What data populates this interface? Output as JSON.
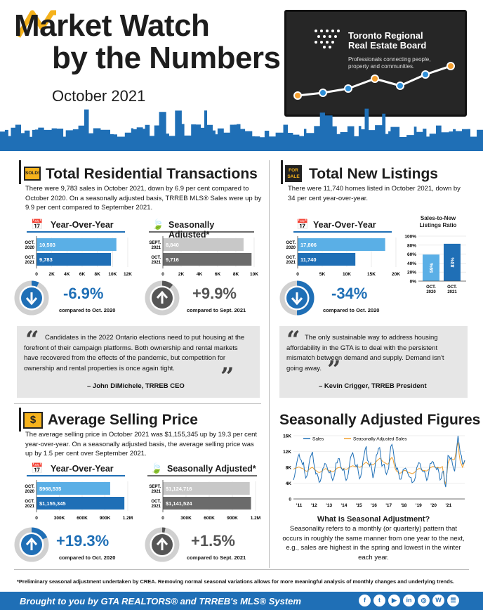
{
  "header": {
    "title_line1": "Market Watch",
    "title_line2": "by the Numbers",
    "date": "October 2021",
    "brand_line1": "Toronto Regional",
    "brand_line2": "Real Estate Board",
    "tagline_line1": "Professionals connecting people,",
    "tagline_line2": "property and communities."
  },
  "transactions": {
    "title": "Total Residential Transactions",
    "badge": "SOLD!",
    "body": "There were 9,783 sales in October 2021, down by 6.9 per cent compared to October 2020. On a seasonally adjusted basis, TRREB MLS® Sales were up by 9.9 per cent compared to September 2021.",
    "yoy_label": "Year-Over-Year",
    "sa_label": "Seasonally Adjusted*",
    "yoy_pct": "-6.9%",
    "yoy_cmp": "compared to Oct. 2020",
    "sa_pct": "+9.9%",
    "sa_cmp": "compared to Sept. 2021"
  },
  "listings": {
    "title": "Total New Listings",
    "badge_line1": "FOR",
    "badge_line2": "SALE",
    "body": "There were 11,740 homes listed in October 2021, down by 34 per cent year-over-year.",
    "yoy_label": "Year-Over-Year",
    "yoy_pct": "-34%",
    "yoy_cmp": "compared to Oct. 2020",
    "ratio_title_line1": "Sales-to-New",
    "ratio_title_line2": "Listings Ratio"
  },
  "quote1": {
    "text": "Candidates in the 2022 Ontario elections need to put housing at the forefront of their campaign platforms. Both ownership and rental markets have recovered from the effects of the pandemic, but competition for ownership and rental properties is once again tight.",
    "by": "– John DiMichele, TRREB CEO"
  },
  "quote2": {
    "text": "The only sustainable way to address housing affordability in the GTA is to deal with the persistent mismatch between demand and supply. Demand isn't going away.",
    "by": "– Kevin Crigger, TRREB President"
  },
  "price": {
    "title": "Average Selling Price",
    "badge": "$",
    "body": "The average selling price in October 2021 was $1,155,345 up by 19.3 per cent year-over-year. On a seasonally adjusted basis, the average selling price was up by 1.5 per cent over September 2021.",
    "yoy_label": "Year-Over-Year",
    "sa_label": "Seasonally Adjusted*",
    "yoy_pct": "+19.3%",
    "yoy_cmp": "compared to Oct. 2020",
    "sa_pct": "+1.5%",
    "sa_cmp": "compared to Sept. 2021"
  },
  "seasonal": {
    "title": "Seasonally Adjusted Figures",
    "q_title": "What is Seasonal Adjustment?",
    "q_body": "Seasonality refers to a monthly (or quarterly) pattern that occurs in roughly the same manner from one year to the next, e.g., sales are highest in the spring and lowest in the winter each year."
  },
  "footnote": "*Preliminary seasonal adjustment undertaken by CREA. Removing normal seasonal variations allows for more meaningful analysis of monthly changes and underlying trends.",
  "footer": "Brought to you by GTA REALTORS® and TRREB's MLS® System",
  "social": [
    "f",
    "t",
    "▶",
    "in",
    "◎",
    "W",
    "☰"
  ],
  "colors": {
    "blue": "#1f6fb6",
    "light_blue": "#5aafe6",
    "gray": "#6b6b6b",
    "light_gray": "#c8c8c8",
    "orange": "#f0a030",
    "yellow": "#f5b21c"
  },
  "chart_data": [
    {
      "type": "bar",
      "orientation": "horizontal",
      "title": "Year-Over-Year",
      "categories": [
        "OCT. 2020",
        "OCT. 2021"
      ],
      "values": [
        10503,
        9783
      ],
      "value_labels": [
        "10,503",
        "9,783"
      ],
      "xlim": [
        0,
        12000
      ],
      "ticks": [
        "0",
        "2K",
        "4K",
        "6K",
        "8K",
        "10K",
        "12K"
      ],
      "colors": [
        "#5aafe6",
        "#1f6fb6"
      ]
    },
    {
      "type": "bar",
      "orientation": "horizontal",
      "title": "Seasonally Adjusted*",
      "categories": [
        "SEPT. 2021",
        "OCT. 2021"
      ],
      "values": [
        8840,
        9716
      ],
      "value_labels": [
        "8,840",
        "9,716"
      ],
      "xlim": [
        0,
        10000
      ],
      "ticks": [
        "0",
        "2K",
        "4K",
        "6K",
        "8K",
        "10K"
      ],
      "colors": [
        "#c8c8c8",
        "#6b6b6b"
      ]
    },
    {
      "type": "bar",
      "orientation": "horizontal",
      "title": "Year-Over-Year",
      "categories": [
        "OCT. 2020",
        "OCT. 2021"
      ],
      "values": [
        17806,
        11740
      ],
      "value_labels": [
        "17,806",
        "11,740"
      ],
      "xlim": [
        0,
        20000
      ],
      "ticks": [
        "0",
        "5K",
        "10K",
        "15K",
        "20K"
      ],
      "colors": [
        "#5aafe6",
        "#1f6fb6"
      ]
    },
    {
      "type": "bar",
      "orientation": "vertical",
      "title": "Sales-to-New Listings Ratio",
      "categories": [
        "OCT. 2020",
        "OCT. 2021"
      ],
      "values": [
        59,
        83
      ],
      "value_labels": [
        "59%",
        "83%"
      ],
      "ylim": [
        0,
        100
      ],
      "ticks": [
        "0%",
        "20%",
        "40%",
        "60%",
        "80%",
        "100%"
      ],
      "colors": [
        "#5aafe6",
        "#1f6fb6"
      ]
    },
    {
      "type": "bar",
      "orientation": "horizontal",
      "title": "Year-Over-Year",
      "categories": [
        "OCT. 2020",
        "OCT. 2021"
      ],
      "values": [
        968535,
        1155345
      ],
      "value_labels": [
        "$968,535",
        "$1,155,345"
      ],
      "xlim": [
        0,
        1200000
      ],
      "ticks": [
        "0",
        "300K",
        "600K",
        "900K",
        "1.2M"
      ],
      "colors": [
        "#5aafe6",
        "#1f6fb6"
      ]
    },
    {
      "type": "bar",
      "orientation": "horizontal",
      "title": "Seasonally Adjusted*",
      "categories": [
        "SEPT. 2021",
        "OCT. 2021"
      ],
      "values": [
        1124716,
        1141524
      ],
      "value_labels": [
        "$1,124,716",
        "$1,141,524"
      ],
      "xlim": [
        0,
        1200000
      ],
      "ticks": [
        "0",
        "300K",
        "600K",
        "900K",
        "1.2M"
      ],
      "colors": [
        "#c8c8c8",
        "#6b6b6b"
      ]
    },
    {
      "type": "line",
      "title": "Seasonally Adjusted Figures",
      "x_ticks": [
        "'11",
        "'12",
        "'13",
        "'14",
        "'15",
        "'16",
        "'17",
        "'18",
        "'19",
        "'20",
        "'21"
      ],
      "y_ticks": [
        "0",
        "4K",
        "8K",
        "12K",
        "16K"
      ],
      "ylim": [
        0,
        16000
      ],
      "legend": "top",
      "series": [
        {
          "name": "Sales",
          "color": "#1f6fb6",
          "values": [
            4800,
            5800,
            7600,
            9200,
            10600,
            11300,
            10000,
            9800,
            8700,
            9200,
            6800,
            5300,
            5800,
            6800,
            9000,
            10500,
            11200,
            11900,
            9300,
            7800,
            6300,
            6500,
            5600,
            4200,
            4500,
            5600,
            7600,
            8000,
            9000,
            8800,
            8100,
            7000,
            6600,
            7000,
            5600,
            4700,
            5300,
            6600,
            9100,
            9100,
            10200,
            10200,
            8400,
            7700,
            7200,
            7600,
            5700,
            4700,
            5200,
            6400,
            8500,
            10500,
            11200,
            11700,
            10400,
            8700,
            8200,
            8700,
            6700,
            5100,
            5600,
            7100,
            9500,
            11000,
            12500,
            13300,
            9800,
            9500,
            8300,
            9100,
            7500,
            5300,
            6400,
            8400,
            11000,
            11500,
            12800,
            13000,
            10800,
            8300,
            8600,
            8800,
            7100,
            6200,
            7000,
            7700,
            11200,
            13300,
            13800,
            12600,
            10400,
            8800,
            7500,
            7800,
            6400,
            5000,
            5000,
            6000,
            7500,
            7600,
            7800,
            7400,
            6600,
            5800,
            5500,
            5400,
            4100,
            4300,
            4600,
            5600,
            7800,
            8500,
            9200,
            9000,
            7800,
            7100,
            6900,
            7000,
            6000,
            4700,
            5200,
            7100,
            8900,
            9000,
            9500,
            9300,
            8200,
            8000,
            7400,
            7900,
            6600,
            4800,
            5200,
            6800,
            7000,
            4100,
            3000,
            6200,
            11000,
            10800,
            10100,
            10500,
            8800,
            7700,
            7000,
            9800,
            13300,
            16000,
            13800,
            11600,
            11000,
            8800,
            9000,
            9800
          ]
        },
        {
          "name": "Seasonally Adjusted Sales",
          "color": "#f0a030",
          "values": [
            7500,
            7700,
            7800,
            7900,
            8000,
            8100,
            7900,
            7800,
            7700,
            7600,
            7300,
            7100,
            7000,
            7200,
            7500,
            7700,
            7900,
            8000,
            7700,
            7400,
            7200,
            7000,
            6800,
            6700,
            6800,
            7000,
            7200,
            7400,
            7600,
            7700,
            7500,
            7300,
            7100,
            7200,
            7000,
            6900,
            7000,
            7200,
            7500,
            7800,
            7900,
            8000,
            7900,
            7700,
            7600,
            7700,
            7600,
            7500,
            7600,
            7800,
            8000,
            8200,
            8300,
            8400,
            8300,
            8200,
            8100,
            8200,
            8100,
            8000,
            8100,
            8300,
            8600,
            8900,
            9100,
            9300,
            9000,
            8800,
            8700,
            8800,
            8700,
            8600,
            8800,
            9100,
            9500,
            9800,
            10000,
            10300,
            10100,
            9700,
            9400,
            9300,
            9100,
            8900,
            8800,
            9000,
            9700,
            10200,
            10500,
            10000,
            8600,
            7600,
            7100,
            6900,
            6600,
            6500,
            6600,
            6900,
            7100,
            7200,
            7200,
            7000,
            6800,
            6700,
            6600,
            6500,
            6400,
            6500,
            6700,
            6900,
            7300,
            7500,
            7700,
            7700,
            7500,
            7300,
            7200,
            7200,
            7100,
            7100,
            7300,
            7600,
            7900,
            8000,
            8200,
            8200,
            8100,
            8000,
            7900,
            8000,
            7900,
            7800,
            8000,
            8200,
            6400,
            4600,
            3700,
            6300,
            9000,
            9700,
            10200,
            10300,
            10000,
            9900,
            10100,
            11500,
            13200,
            14300,
            11400,
            9400,
            8800,
            8000,
            8700,
            9700
          ]
        }
      ]
    }
  ]
}
